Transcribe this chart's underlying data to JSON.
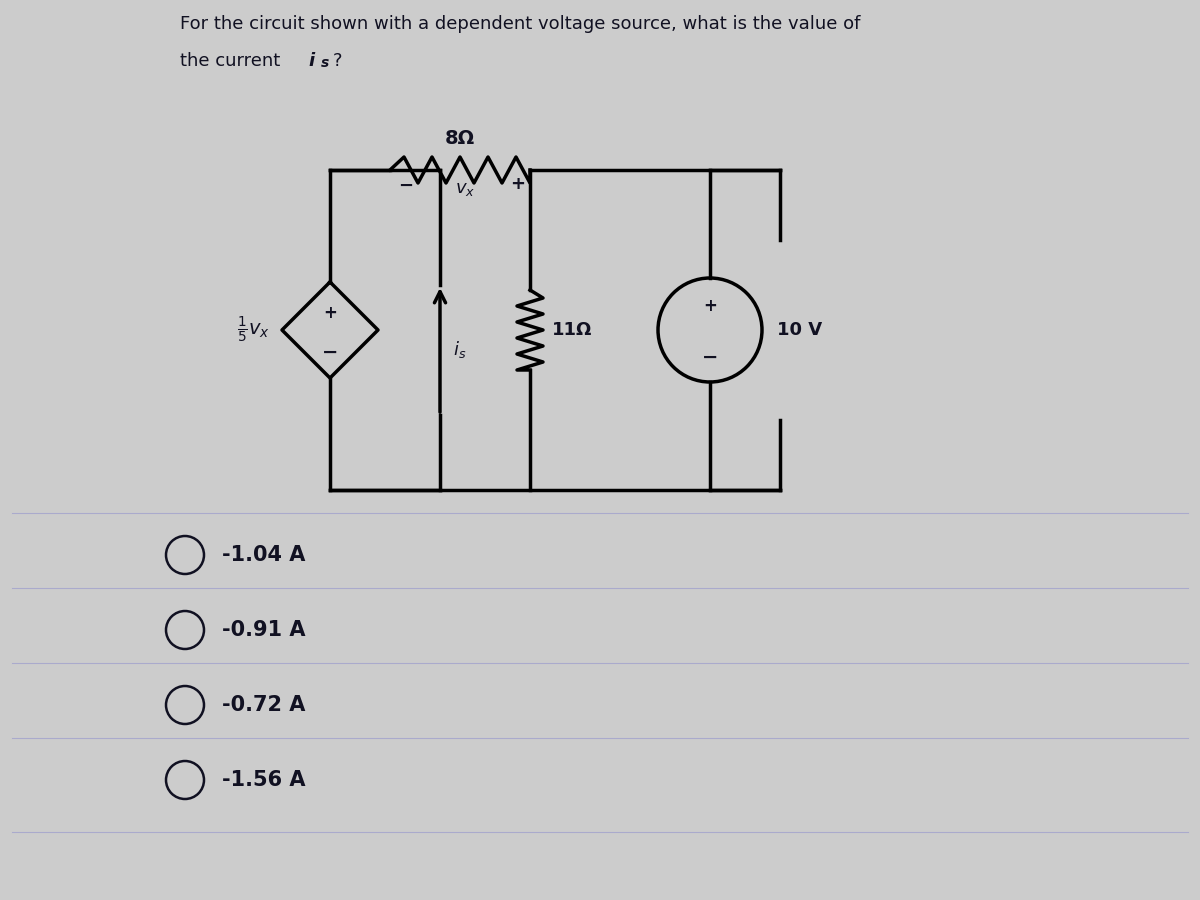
{
  "bg_color": "#cccccc",
  "title_line1": "For the circuit shown with a dependent voltage source, what is the value of",
  "title_line2": "the current ",
  "title_line2_italic": "i",
  "title_line2_sub": "s",
  "title_line2_end": "?",
  "options": [
    "-1.04 A",
    "-0.91 A",
    "-0.72 A",
    "-1.56 A"
  ],
  "text_color": "#111122",
  "option_circle_color": "#111122",
  "line_color": "#000000",
  "line_width": 2.5
}
